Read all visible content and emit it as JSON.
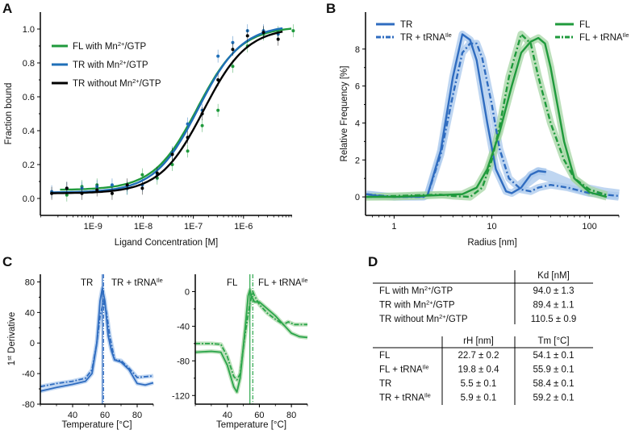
{
  "panel_letters": {
    "a": "A",
    "b": "B",
    "c": "C",
    "d": "D"
  },
  "chart_data": [
    {
      "id": "A",
      "type": "scatter",
      "title": "",
      "xlabel": "Ligand Concentration [M]",
      "ylabel": "Fraction bound",
      "xscale": "log",
      "xlim": [
        8.9e-11,
        9.3e-06
      ],
      "ylim": [
        -0.1,
        1.1
      ],
      "xticks": [
        1e-09,
        1e-08,
        1e-07,
        1e-06
      ],
      "xtick_labels": [
        "1E-9",
        "1E-8",
        "1E-7",
        "1E-6"
      ],
      "yticks": [
        0,
        0.2,
        0.4,
        0.6,
        0.8,
        1.0
      ],
      "ytick_labels": [
        "0.0",
        "0.2",
        "0.4",
        "0.6",
        "0.8",
        "1.0"
      ],
      "legend_position": "top-left",
      "series": [
        {
          "name": "FL with Mn2+/GTP",
          "label": {
            "main": "FL with Mn",
            "sup": "2+",
            "rest": "/GTP"
          },
          "color": "#1f9a3c",
          "x": [
            3e-10,
            6e-10,
            1.2e-09,
            2.4e-09,
            4.8e-09,
            9.6e-09,
            1.9e-08,
            3.8e-08,
            7.7e-08,
            1.5e-07,
            3.1e-07,
            6.1e-07,
            1.2e-06,
            2.5e-06,
            4.9e-06,
            9.8e-06
          ],
          "y": [
            0.02,
            0.07,
            0.08,
            0.05,
            0.06,
            0.14,
            0.12,
            0.2,
            0.28,
            0.43,
            0.52,
            0.78,
            0.9,
            0.97,
            0.98,
            0.99
          ],
          "fit": {
            "bottom": 0.05,
            "top": 1.015,
            "ec50": 1.2e-07,
            "range": [
              2.2e-10,
              9e-06
            ]
          }
        },
        {
          "name": "TR with Mn2+/GTP",
          "label": {
            "main": "TR with Mn",
            "sup": "2+",
            "rest": "/GTP"
          },
          "color": "#1f6fb8",
          "x": [
            1.5e-10,
            3e-10,
            6e-10,
            1.2e-09,
            2.4e-09,
            4.8e-09,
            9.6e-09,
            1.9e-08,
            3.8e-08,
            7.7e-08,
            1.5e-07,
            3.1e-07,
            6.1e-07,
            1.2e-06,
            2.5e-06,
            4.9e-06
          ],
          "y": [
            0.04,
            0.06,
            0.06,
            0.07,
            0.08,
            0.06,
            0.08,
            0.14,
            0.27,
            0.44,
            0.52,
            0.84,
            0.92,
            0.99,
            0.99,
            0.97
          ],
          "fit": {
            "bottom": 0.035,
            "top": 1.025,
            "ec50": 1.25e-07,
            "range": [
              1.5e-10,
              6e-06
            ]
          }
        },
        {
          "name": "TR without Mn2+/GTP",
          "label": {
            "main": "TR without Mn",
            "sup": "2+",
            "rest": "/GTP"
          },
          "color": "#000000",
          "x": [
            1.5e-10,
            3e-10,
            6e-10,
            1.2e-09,
            2.4e-09,
            4.8e-09,
            9.6e-09,
            1.9e-08,
            3.8e-08,
            7.7e-08,
            1.5e-07,
            3.1e-07,
            6.1e-07,
            1.2e-06,
            2.5e-06,
            4.9e-06
          ],
          "y": [
            0.03,
            0.06,
            0.03,
            0.05,
            0.03,
            0.08,
            0.06,
            0.15,
            0.26,
            0.36,
            0.5,
            0.7,
            0.88,
            0.96,
            0.98,
            0.94
          ],
          "fit": {
            "bottom": 0.03,
            "top": 1.01,
            "ec50": 1.6e-07,
            "range": [
              1.5e-10,
              6e-06
            ]
          }
        }
      ]
    },
    {
      "id": "B",
      "type": "line",
      "title": "",
      "xlabel": "Radius [nm]",
      "ylabel": "Relative Frequency [%]",
      "xscale": "log",
      "xlim": [
        0.51,
        200
      ],
      "ylim": [
        -1,
        10
      ],
      "xticks": [
        1,
        10,
        100
      ],
      "xtick_labels": [
        "1",
        "10",
        "100"
      ],
      "yticks": [
        0,
        2,
        4,
        6,
        8
      ],
      "ytick_labels": [
        "0",
        "2",
        "4",
        "6",
        "8"
      ],
      "series": [
        {
          "name": "TR",
          "label": {
            "main": "TR",
            "sup": "",
            "rest": ""
          },
          "color": "#2f6cc0",
          "band": "#a9c8ec",
          "style": "solid",
          "x": [
            0.52,
            0.7,
            1,
            2,
            2.2,
            3,
            4,
            5,
            6,
            7,
            9,
            11,
            14,
            16,
            20,
            25,
            30,
            36
          ],
          "y": [
            0.15,
            0.05,
            0,
            0.02,
            0.1,
            2.5,
            6.5,
            8.8,
            8.5,
            7.4,
            4,
            1.5,
            0.3,
            0.2,
            0.5,
            1.2,
            1.4,
            1.35
          ],
          "band_x": [
            20,
            30,
            40,
            60,
            90,
            140,
            200
          ],
          "band_y": [
            0.6,
            1.3,
            1.1,
            0.7,
            0.4,
            0.2,
            0.1
          ]
        },
        {
          "name": "TR + tRNAIle",
          "label": {
            "main": "TR + tRNA",
            "sup": "Ile",
            "rest": ""
          },
          "color": "#2f6cc0",
          "band": "#a9c8ec",
          "style": "dashdot",
          "x": [
            0.52,
            1,
            2,
            2.2,
            3,
            4,
            5,
            6,
            7,
            8,
            10,
            12,
            15,
            20,
            25,
            30,
            40,
            60,
            100,
            200
          ],
          "y": [
            0.15,
            0,
            0,
            0.1,
            2.3,
            5.5,
            7.8,
            8.3,
            8.3,
            7.5,
            5,
            2.6,
            1,
            0.4,
            0.3,
            0.5,
            0.65,
            0.5,
            0.2,
            0.05
          ]
        },
        {
          "name": "FL",
          "label": {
            "main": "FL",
            "sup": "",
            "rest": ""
          },
          "color": "#1f9a3c",
          "band": "#a6d6a4",
          "style": "solid",
          "x": [
            0.52,
            1,
            3,
            5,
            7,
            9,
            12,
            16,
            20,
            25,
            30,
            35,
            40,
            55,
            70,
            100,
            150
          ],
          "y": [
            0,
            0,
            0.1,
            0.15,
            0.5,
            1.5,
            3.5,
            6,
            7.8,
            8.4,
            8.6,
            8.3,
            7,
            3,
            1,
            0.25,
            0
          ]
        },
        {
          "name": "FL + tRNAIle",
          "label": {
            "main": "FL + tRNA",
            "sup": "Ile",
            "rest": ""
          },
          "color": "#1f9a3c",
          "band": "#a6d6a4",
          "style": "dashdot",
          "x": [
            0.52,
            2,
            3,
            4,
            6,
            8,
            10,
            12,
            15,
            20,
            25,
            30,
            40,
            55,
            70,
            100,
            150
          ],
          "y": [
            0,
            0.1,
            0.12,
            0.05,
            0,
            0.5,
            2,
            3.8,
            6.5,
            8.8,
            8.3,
            6.5,
            4,
            2,
            1,
            0.4,
            0.1
          ]
        }
      ]
    },
    {
      "id": "C-left",
      "type": "line",
      "xlabel": "Temperature [°C]",
      "ylabel": "1st Derivative",
      "ylabel_parts": {
        "main": "1",
        "sup": "st",
        "rest": " Derivative"
      },
      "xlim": [
        20,
        90
      ],
      "ylim": [
        -80,
        90
      ],
      "xticks": [
        40,
        60,
        80
      ],
      "xtick_labels": [
        "40",
        "60",
        "80"
      ],
      "yticks": [
        -80,
        -40,
        0,
        40,
        80
      ],
      "ytick_labels": [
        "-80",
        "-40",
        "0",
        "40",
        "80"
      ],
      "annotations": [
        {
          "main": "TR",
          "sup": "",
          "rest": ""
        },
        {
          "main": "TR + tRNA",
          "sup": "Ile",
          "rest": ""
        }
      ],
      "vlines": [
        {
          "x": 58.4,
          "style": "solid"
        },
        {
          "x": 59.2,
          "style": "dashdot"
        }
      ],
      "series": [
        {
          "name": "TR",
          "color": "#2f6cc0",
          "band": "#a9c8ec",
          "style": "solid",
          "x": [
            20,
            30,
            40,
            48,
            52,
            55,
            57,
            58.4,
            60,
            62,
            64,
            66,
            70,
            75,
            80,
            85,
            90
          ],
          "y": [
            -63,
            -58,
            -54,
            -50,
            -40,
            0,
            55,
            72,
            55,
            10,
            -10,
            -22,
            -25,
            -35,
            -53,
            -55,
            -52
          ]
        },
        {
          "name": "TR + tRNAIle",
          "color": "#2f6cc0",
          "band": "#a9c8ec",
          "style": "dashdot",
          "x": [
            20,
            30,
            40,
            48,
            52,
            55,
            57,
            59.2,
            61,
            63,
            66,
            70,
            75,
            80,
            90
          ],
          "y": [
            -57,
            -53,
            -50,
            -46,
            -35,
            0,
            35,
            55,
            40,
            10,
            -22,
            -23,
            -33,
            -45,
            -43
          ]
        }
      ]
    },
    {
      "id": "C-right",
      "type": "line",
      "xlabel": "Temperature [°C]",
      "ylabel": "",
      "xlim": [
        20,
        90
      ],
      "ylim": [
        -130,
        20
      ],
      "xticks": [
        40,
        60,
        80
      ],
      "xtick_labels": [
        "40",
        "60",
        "80"
      ],
      "yticks": [
        -120,
        -80,
        -40,
        0
      ],
      "ytick_labels": [
        "-120",
        "-80",
        "-40",
        "0"
      ],
      "annotations": [
        {
          "main": "FL",
          "sup": "",
          "rest": ""
        },
        {
          "main": "FL + tRNA",
          "sup": "Ile",
          "rest": ""
        }
      ],
      "vlines": [
        {
          "x": 54.1,
          "style": "solid"
        },
        {
          "x": 55.9,
          "style": "dashdot"
        }
      ],
      "series": [
        {
          "name": "FL",
          "color": "#2aa54a",
          "band": "#a6d6a4",
          "style": "solid",
          "x": [
            20,
            30,
            36,
            40,
            44,
            46,
            48,
            51,
            53,
            54.1,
            55,
            57,
            60,
            65,
            70,
            75,
            80,
            85,
            90
          ],
          "y": [
            -70,
            -69,
            -70,
            -85,
            -110,
            -116,
            -100,
            -45,
            -5,
            2,
            -5,
            -12,
            -12,
            -20,
            -28,
            -38,
            -48,
            -52,
            -53
          ]
        },
        {
          "name": "FL + tRNAIle",
          "color": "#2aa54a",
          "band": "#a6d6a4",
          "style": "dashdot",
          "x": [
            20,
            30,
            36,
            40,
            44,
            46,
            48,
            51,
            54,
            55.9,
            57,
            60,
            65,
            70,
            75,
            78,
            82,
            90
          ],
          "y": [
            -60,
            -60,
            -61,
            -75,
            -98,
            -102,
            -95,
            -50,
            -15,
            0,
            -5,
            -15,
            -25,
            -32,
            -38,
            -35,
            -38,
            -38
          ]
        }
      ]
    },
    {
      "id": "D",
      "type": "table",
      "table1": {
        "header": "Kd [nM]",
        "rows": [
          {
            "label": {
              "main": "FL with Mn",
              "sup": "2+",
              "rest": "/GTP"
            },
            "kd": "94.0 ± 1.3"
          },
          {
            "label": {
              "main": "TR with Mn",
              "sup": "2+",
              "rest": "/GTP"
            },
            "kd": "89.4 ± 1.1"
          },
          {
            "label": {
              "main": "TR without Mn",
              "sup": "2+",
              "rest": "/GTP"
            },
            "kd": "110.5 ± 0.9"
          }
        ]
      },
      "table2": {
        "headers": [
          "rH [nm]",
          "Tm [°C]"
        ],
        "rows": [
          {
            "label": {
              "main": "FL",
              "sup": "",
              "rest": ""
            },
            "rh": "22.7 ± 0.2",
            "tm": "54.1 ± 0.1"
          },
          {
            "label": {
              "main": "FL + tRNA",
              "sup": "Ile",
              "rest": ""
            },
            "rh": "19.8 ± 0.4",
            "tm": "55.9 ± 0.1"
          },
          {
            "label": {
              "main": "TR",
              "sup": "",
              "rest": ""
            },
            "rh": "5.5 ± 0.1",
            "tm": "58.4 ± 0.1"
          },
          {
            "label": {
              "main": "TR + tRNA",
              "sup": "Ile",
              "rest": ""
            },
            "rh": "5.9 ± 0.1",
            "tm": "59.2 ± 0.1"
          }
        ]
      }
    }
  ]
}
